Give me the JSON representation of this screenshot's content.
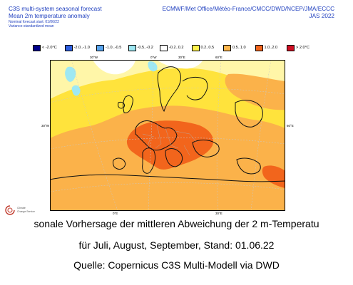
{
  "header": {
    "title_line1": "C3S multi-system seasonal forecast",
    "title_line2": "Mean 2m temperature anomaly",
    "subtitle1": "Nominal forecast start: 01/06/22",
    "subtitle2": "Variance-standardized mean",
    "centres": "ECMWF/Met Office/Météo-France/CMCC/DWD/NCEP/JMA/ECCC",
    "season": "JAS 2022"
  },
  "legend": [
    {
      "label": "< -2.0°C",
      "color": "#00008b"
    },
    {
      "label": "-2.0..-1.0",
      "color": "#2e5fe0"
    },
    {
      "label": "-1.0..-0.5",
      "color": "#59a5ef"
    },
    {
      "label": "-0.5..-0.2",
      "color": "#9ee8f3"
    },
    {
      "label": "-0.2..0.2",
      "color": "#ffffff"
    },
    {
      "label": "0.2..0.5",
      "color": "#fff34d"
    },
    {
      "label": "0.5..1.0",
      "color": "#fdb64c"
    },
    {
      "label": "1.0..2.0",
      "color": "#f2651c"
    },
    {
      "label": "> 2.0°C",
      "color": "#cf0f23"
    }
  ],
  "map": {
    "lon_labels_top": [
      "30°W",
      "0°W",
      "30°E",
      "60°E"
    ],
    "lon_labels_bottom": [
      "0°E",
      "30°E"
    ],
    "lat_labels_left": [
      "30°W"
    ],
    "lat_labels_right": [
      "60°E"
    ],
    "colors": {
      "ocean_pale": "#fff6a8",
      "warm_yellow": "#ffe33c",
      "warm_orange": "#fbb24a",
      "hot_orange": "#f2651c",
      "cool_cyan": "#9ee8f3",
      "neutral": "#ffffff"
    }
  },
  "logo": {
    "text_line1": "Climate",
    "text_line2": "Change Service"
  },
  "caption": {
    "line1": "sonale Vorhersage der mittleren Abweichung der 2 m-Temperatu",
    "line2": "für Juli, August, September, Stand: 01.06.22",
    "line3": "Quelle: Copernicus C3S Multi-Modell via DWD"
  }
}
